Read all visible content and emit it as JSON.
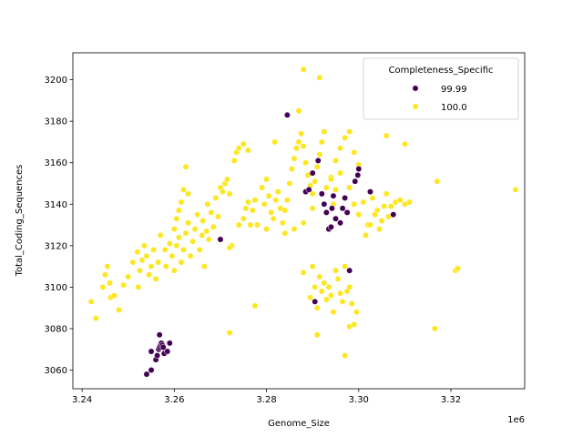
{
  "chart_data": {
    "type": "scatter",
    "xlabel": "Genome_Size",
    "ylabel": "Total_Coding_Sequences",
    "x_offset_label": "1e6",
    "xlim": [
      3.238,
      3.336
    ],
    "ylim": [
      3051,
      3213
    ],
    "x_ticks": [
      3.24,
      3.26,
      3.28,
      3.3,
      3.32
    ],
    "x_tick_labels": [
      "3.24",
      "3.26",
      "3.28",
      "3.30",
      "3.32"
    ],
    "y_ticks": [
      3060,
      3080,
      3100,
      3120,
      3140,
      3160,
      3180,
      3200
    ],
    "y_tick_labels": [
      "3060",
      "3080",
      "3100",
      "3120",
      "3140",
      "3160",
      "3180",
      "3200"
    ],
    "grid": false,
    "legend": {
      "title": "Completeness_Specific",
      "position": "top-right"
    },
    "series": [
      {
        "name": "99.99",
        "color": "#440154",
        "points": [
          [
            3.254,
            3058
          ],
          [
            3.255,
            3060
          ],
          [
            3.255,
            3069
          ],
          [
            3.256,
            3065
          ],
          [
            3.2563,
            3067
          ],
          [
            3.2566,
            3070
          ],
          [
            3.2568,
            3071
          ],
          [
            3.257,
            3072
          ],
          [
            3.2572,
            3073
          ],
          [
            3.2574,
            3072
          ],
          [
            3.2576,
            3071
          ],
          [
            3.2578,
            3068
          ],
          [
            3.2568,
            3077
          ],
          [
            3.259,
            3073
          ],
          [
            3.2585,
            3069
          ],
          [
            3.27,
            3123
          ],
          [
            3.2845,
            3183
          ],
          [
            3.2885,
            3146
          ],
          [
            3.2892,
            3147
          ],
          [
            3.29,
            3155
          ],
          [
            3.2912,
            3161
          ],
          [
            3.292,
            3145
          ],
          [
            3.2925,
            3140
          ],
          [
            3.293,
            3136
          ],
          [
            3.2935,
            3128
          ],
          [
            3.294,
            3129
          ],
          [
            3.2942,
            3138
          ],
          [
            3.2945,
            3144
          ],
          [
            3.295,
            3133
          ],
          [
            3.296,
            3131
          ],
          [
            3.2965,
            3138
          ],
          [
            3.297,
            3143
          ],
          [
            3.2975,
            3136
          ],
          [
            3.298,
            3108
          ],
          [
            3.2992,
            3151
          ],
          [
            3.2998,
            3154
          ],
          [
            3.3,
            3157
          ],
          [
            3.3025,
            3146
          ],
          [
            3.3075,
            3135
          ],
          [
            3.2905,
            3093
          ]
        ]
      },
      {
        "name": "100.0",
        "color": "#fde725",
        "points": [
          [
            3.242,
            3093
          ],
          [
            3.243,
            3085
          ],
          [
            3.2445,
            3100
          ],
          [
            3.245,
            3106
          ],
          [
            3.2455,
            3110
          ],
          [
            3.246,
            3102
          ],
          [
            3.2462,
            3095
          ],
          [
            3.247,
            3096
          ],
          [
            3.248,
            3089
          ],
          [
            3.249,
            3101
          ],
          [
            3.25,
            3105
          ],
          [
            3.251,
            3112
          ],
          [
            3.252,
            3117
          ],
          [
            3.2522,
            3100
          ],
          [
            3.2525,
            3108
          ],
          [
            3.253,
            3113
          ],
          [
            3.2535,
            3120
          ],
          [
            3.254,
            3115
          ],
          [
            3.2545,
            3106
          ],
          [
            3.255,
            3110
          ],
          [
            3.2555,
            3118
          ],
          [
            3.256,
            3104
          ],
          [
            3.2565,
            3112
          ],
          [
            3.257,
            3125
          ],
          [
            3.258,
            3118
          ],
          [
            3.259,
            3121
          ],
          [
            3.26,
            3128
          ],
          [
            3.2605,
            3133
          ],
          [
            3.261,
            3137
          ],
          [
            3.2615,
            3141
          ],
          [
            3.262,
            3147
          ],
          [
            3.2625,
            3158
          ],
          [
            3.263,
            3145
          ],
          [
            3.2582,
            3110
          ],
          [
            3.2595,
            3115
          ],
          [
            3.26,
            3108
          ],
          [
            3.2605,
            3120
          ],
          [
            3.261,
            3124
          ],
          [
            3.2615,
            3112
          ],
          [
            3.262,
            3118
          ],
          [
            3.2625,
            3126
          ],
          [
            3.263,
            3131
          ],
          [
            3.2635,
            3115
          ],
          [
            3.264,
            3122
          ],
          [
            3.2645,
            3128
          ],
          [
            3.265,
            3135
          ],
          [
            3.2655,
            3118
          ],
          [
            3.266,
            3125
          ],
          [
            3.2662,
            3132
          ],
          [
            3.2665,
            3110
          ],
          [
            3.267,
            3127
          ],
          [
            3.2672,
            3140
          ],
          [
            3.2675,
            3123
          ],
          [
            3.268,
            3136
          ],
          [
            3.2685,
            3129
          ],
          [
            3.269,
            3143
          ],
          [
            3.2695,
            3134
          ],
          [
            3.27,
            3148
          ],
          [
            3.2705,
            3146
          ],
          [
            3.271,
            3150
          ],
          [
            3.2715,
            3152
          ],
          [
            3.272,
            3145
          ],
          [
            3.273,
            3161
          ],
          [
            3.2735,
            3165
          ],
          [
            3.274,
            3167
          ],
          [
            3.275,
            3169
          ],
          [
            3.276,
            3166
          ],
          [
            3.2725,
            3120
          ],
          [
            3.272,
            3119
          ],
          [
            3.274,
            3130
          ],
          [
            3.275,
            3133
          ],
          [
            3.2755,
            3138
          ],
          [
            3.276,
            3141
          ],
          [
            3.2765,
            3130
          ],
          [
            3.277,
            3137
          ],
          [
            3.2775,
            3142
          ],
          [
            3.278,
            3130
          ],
          [
            3.2775,
            3091
          ],
          [
            3.272,
            3078
          ],
          [
            3.279,
            3148
          ],
          [
            3.2795,
            3140
          ],
          [
            3.28,
            3152
          ],
          [
            3.2805,
            3144
          ],
          [
            3.281,
            3136
          ],
          [
            3.2815,
            3133
          ],
          [
            3.282,
            3142
          ],
          [
            3.2825,
            3146
          ],
          [
            3.283,
            3138
          ],
          [
            3.2835,
            3131
          ],
          [
            3.284,
            3137
          ],
          [
            3.2845,
            3142
          ],
          [
            3.285,
            3150
          ],
          [
            3.2855,
            3157
          ],
          [
            3.286,
            3162
          ],
          [
            3.2865,
            3167
          ],
          [
            3.287,
            3170
          ],
          [
            3.2875,
            3174
          ],
          [
            3.288,
            3168
          ],
          [
            3.2885,
            3160
          ],
          [
            3.289,
            3154
          ],
          [
            3.2895,
            3149
          ],
          [
            3.29,
            3145
          ],
          [
            3.2905,
            3151
          ],
          [
            3.291,
            3158
          ],
          [
            3.2915,
            3164
          ],
          [
            3.292,
            3170
          ],
          [
            3.2925,
            3175
          ],
          [
            3.287,
            3185
          ],
          [
            3.288,
            3205
          ],
          [
            3.2915,
            3201
          ],
          [
            3.2818,
            3170
          ],
          [
            3.28,
            3128
          ],
          [
            3.284,
            3126
          ],
          [
            3.286,
            3128
          ],
          [
            3.288,
            3131
          ],
          [
            3.29,
            3138
          ],
          [
            3.293,
            3148
          ],
          [
            3.294,
            3153
          ],
          [
            3.295,
            3161
          ],
          [
            3.296,
            3167
          ],
          [
            3.297,
            3172
          ],
          [
            3.298,
            3175
          ],
          [
            3.299,
            3165
          ],
          [
            3.3,
            3159
          ],
          [
            3.296,
            3155
          ],
          [
            3.295,
            3147
          ],
          [
            3.2945,
            3140
          ],
          [
            3.294,
            3152
          ],
          [
            3.298,
            3148
          ],
          [
            3.299,
            3140
          ],
          [
            3.3,
            3135
          ],
          [
            3.301,
            3141
          ],
          [
            3.302,
            3130
          ],
          [
            3.303,
            3143
          ],
          [
            3.304,
            3137
          ],
          [
            3.305,
            3132
          ],
          [
            3.306,
            3145
          ],
          [
            3.307,
            3139
          ],
          [
            3.308,
            3141
          ],
          [
            3.309,
            3142
          ],
          [
            3.31,
            3140
          ],
          [
            3.311,
            3141
          ],
          [
            3.3015,
            3125
          ],
          [
            3.3025,
            3130
          ],
          [
            3.3035,
            3135
          ],
          [
            3.3045,
            3128
          ],
          [
            3.3055,
            3139
          ],
          [
            3.3065,
            3134
          ],
          [
            3.288,
            3107
          ],
          [
            3.2895,
            3095
          ],
          [
            3.29,
            3110
          ],
          [
            3.2905,
            3100
          ],
          [
            3.291,
            3090
          ],
          [
            3.2915,
            3105
          ],
          [
            3.292,
            3098
          ],
          [
            3.2925,
            3102
          ],
          [
            3.293,
            3094
          ],
          [
            3.2935,
            3100
          ],
          [
            3.294,
            3096
          ],
          [
            3.2945,
            3088
          ],
          [
            3.295,
            3108
          ],
          [
            3.2955,
            3104
          ],
          [
            3.296,
            3097
          ],
          [
            3.2965,
            3093
          ],
          [
            3.297,
            3110
          ],
          [
            3.2975,
            3098
          ],
          [
            3.298,
            3100
          ],
          [
            3.2985,
            3092
          ],
          [
            3.2995,
            3088
          ],
          [
            3.298,
            3081
          ],
          [
            3.297,
            3067
          ],
          [
            3.31,
            3169
          ],
          [
            3.306,
            3173
          ],
          [
            3.317,
            3151
          ],
          [
            3.3165,
            3080
          ],
          [
            3.321,
            3108
          ],
          [
            3.3215,
            3109
          ],
          [
            3.334,
            3147
          ],
          [
            3.291,
            3077
          ],
          [
            3.299,
            3082
          ]
        ]
      }
    ]
  }
}
